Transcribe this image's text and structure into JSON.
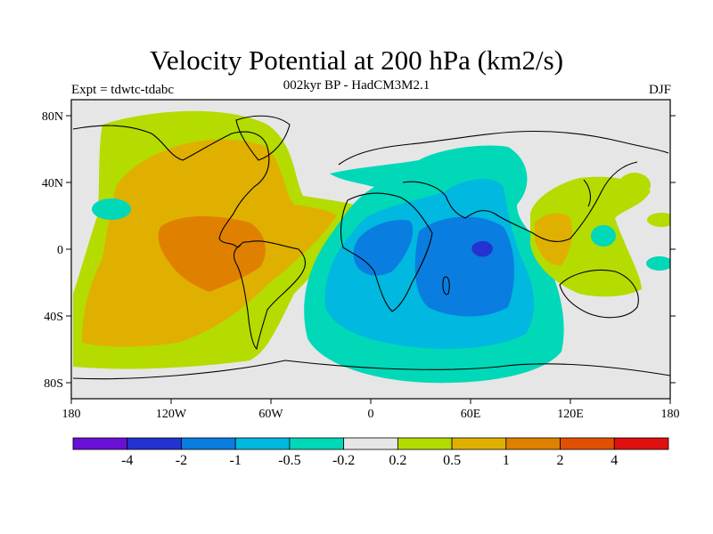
{
  "title": "Velocity Potential at 200 hPa (km2/s)",
  "subtitle": "002kyr BP - HadCM3M2.1",
  "experiment": "Expt = tdwtc-tdabc",
  "season": "DJF",
  "map": {
    "lat_ticks": [
      "80N",
      "40N",
      "0",
      "40S",
      "80S"
    ],
    "lon_ticks": [
      "180",
      "120W",
      "60W",
      "0",
      "60E",
      "120E",
      "180"
    ]
  },
  "colorbar": {
    "colors": [
      "#6a0fd6",
      "#2233d0",
      "#0a7de0",
      "#00b8e0",
      "#00d8b8",
      "#e6e6e6",
      "#b4dc00",
      "#e0b000",
      "#e08000",
      "#e05000",
      "#e01010"
    ],
    "labels": [
      "-4",
      "-2",
      "-1",
      "-0.5",
      "-0.2",
      "0.2",
      "0.5",
      "1",
      "2",
      "4"
    ]
  }
}
